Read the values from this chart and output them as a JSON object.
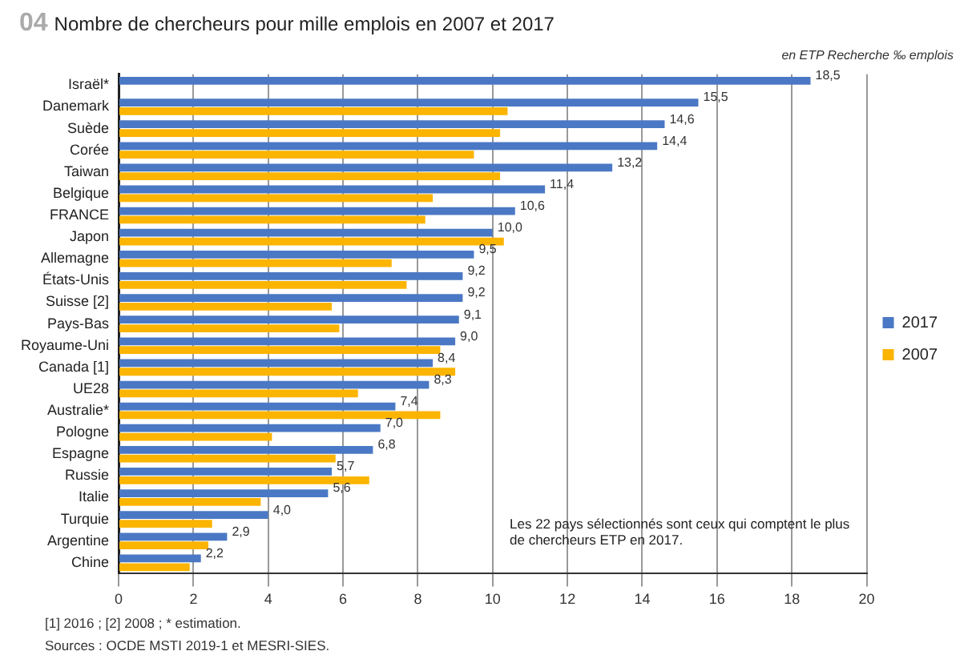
{
  "chart_data": {
    "type": "bar",
    "orientation": "horizontal",
    "title": "Nombre de chercheurs pour mille emplois en 2007 et 2017",
    "subtitle": "en ETP Recherche ‰ emplois",
    "categories": [
      "Israël*",
      "Danemark",
      "Suède",
      "Corée",
      "Taiwan",
      "Belgique",
      "FRANCE",
      "Japon",
      "Allemagne",
      "États-Unis",
      "Suisse [2]",
      "Pays-Bas",
      "Royaume-Uni",
      "Canada [1]",
      "UE28",
      "Australie*",
      "Pologne",
      "Espagne",
      "Russie",
      "Italie",
      "Turquie",
      "Argentine",
      "Chine"
    ],
    "series": [
      {
        "name": "2017",
        "color": "#4a78c4",
        "values": [
          18.5,
          15.5,
          14.6,
          14.4,
          13.2,
          11.4,
          10.6,
          10.0,
          9.5,
          9.2,
          9.2,
          9.1,
          9.0,
          8.4,
          8.3,
          7.4,
          7.0,
          6.8,
          5.7,
          5.6,
          4.0,
          2.9,
          2.2
        ],
        "value_labels": [
          "18,5",
          "15,5",
          "14,6",
          "14,4",
          "13,2",
          "11,4",
          "10,6",
          "10,0",
          "9,5",
          "9,2",
          "9,2",
          "9,1",
          "9,0",
          "8,4",
          "8,3",
          "7,4",
          "7,0",
          "6,8",
          "5,7",
          "5,6",
          "4,0",
          "2,9",
          "2,2"
        ]
      },
      {
        "name": "2007",
        "color": "#fbb400",
        "values": [
          null,
          10.4,
          10.2,
          9.5,
          10.2,
          8.4,
          8.2,
          10.3,
          7.3,
          7.7,
          5.7,
          5.9,
          8.6,
          9.0,
          6.4,
          8.6,
          4.1,
          5.8,
          6.7,
          3.8,
          2.5,
          2.4,
          1.9
        ]
      }
    ],
    "xlim": [
      0,
      20
    ],
    "xticks": [
      0,
      2,
      4,
      6,
      8,
      10,
      12,
      14,
      16,
      18,
      20
    ],
    "grid": "x",
    "legend": "right",
    "annotations": [
      "04",
      "Les 22 pays sélectionnés sont ceux qui comptent le plus de chercheurs ETP en 2017.",
      "[1] 2016 ; [2] 2008 ; * estimation.",
      "Sources : OCDE MSTI 2019-1 et MESRI-SIES."
    ]
  }
}
